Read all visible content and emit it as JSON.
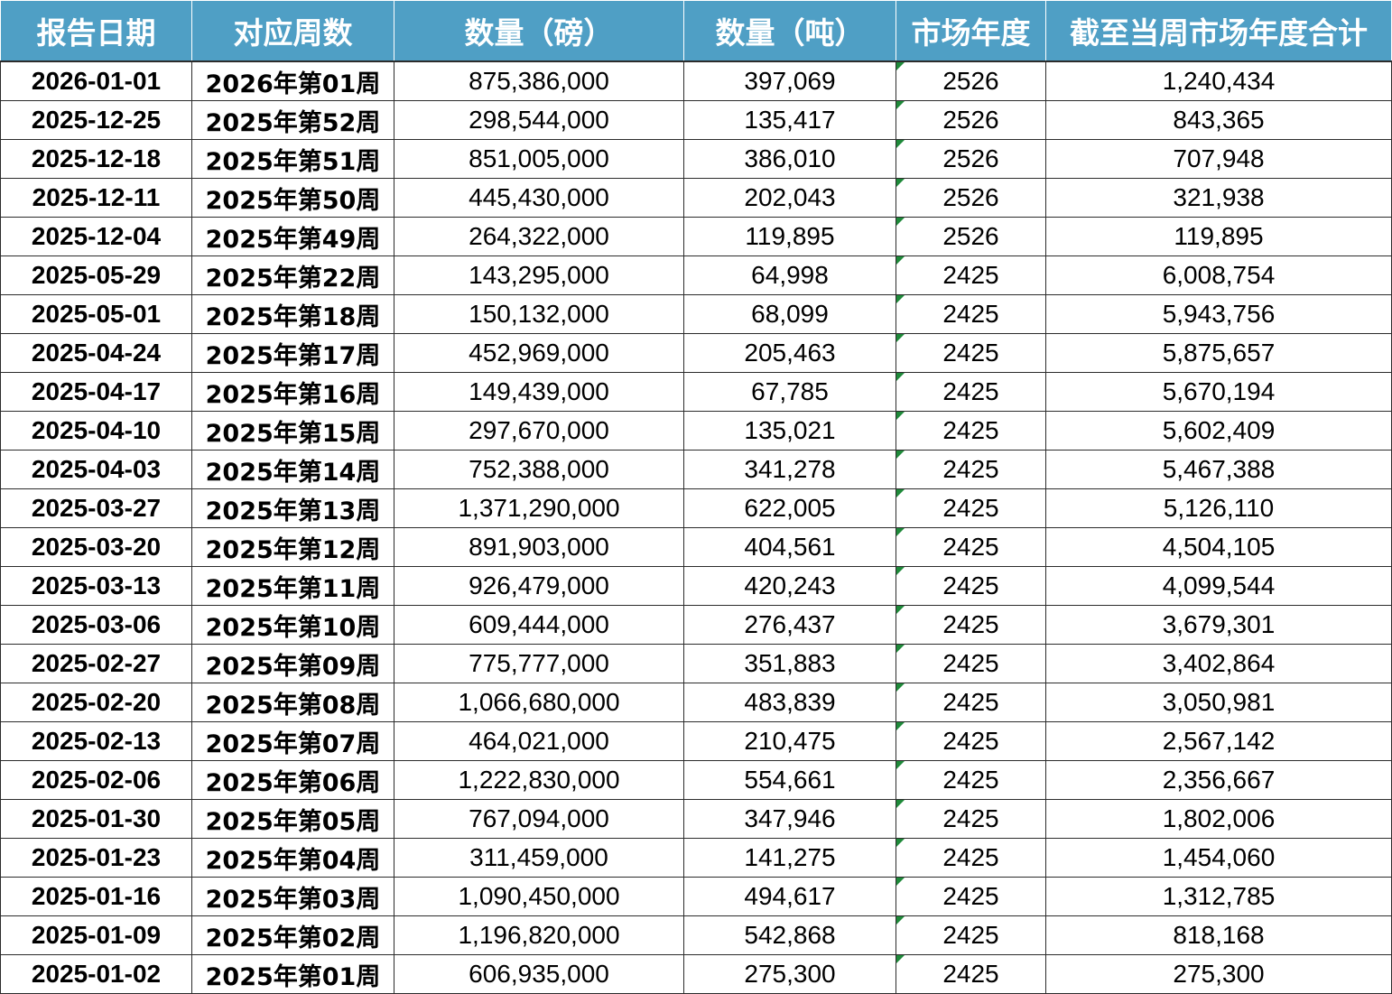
{
  "headers": [
    "报告日期",
    "对应周数",
    "数量（磅）",
    "数量（吨）",
    "市场年度",
    "截至当周市场年度合计"
  ],
  "rows": [
    [
      "2026-01-01",
      "2026年第01周",
      "875,386,000",
      "397,069",
      "2526",
      "1,240,434"
    ],
    [
      "2025-12-25",
      "2025年第52周",
      "298,544,000",
      "135,417",
      "2526",
      "843,365"
    ],
    [
      "2025-12-18",
      "2025年第51周",
      "851,005,000",
      "386,010",
      "2526",
      "707,948"
    ],
    [
      "2025-12-11",
      "2025年第50周",
      "445,430,000",
      "202,043",
      "2526",
      "321,938"
    ],
    [
      "2025-12-04",
      "2025年第49周",
      "264,322,000",
      "119,895",
      "2526",
      "119,895"
    ],
    [
      "2025-05-29",
      "2025年第22周",
      "143,295,000",
      "64,998",
      "2425",
      "6,008,754"
    ],
    [
      "2025-05-01",
      "2025年第18周",
      "150,132,000",
      "68,099",
      "2425",
      "5,943,756"
    ],
    [
      "2025-04-24",
      "2025年第17周",
      "452,969,000",
      "205,463",
      "2425",
      "5,875,657"
    ],
    [
      "2025-04-17",
      "2025年第16周",
      "149,439,000",
      "67,785",
      "2425",
      "5,670,194"
    ],
    [
      "2025-04-10",
      "2025年第15周",
      "297,670,000",
      "135,021",
      "2425",
      "5,602,409"
    ],
    [
      "2025-04-03",
      "2025年第14周",
      "752,388,000",
      "341,278",
      "2425",
      "5,467,388"
    ],
    [
      "2025-03-27",
      "2025年第13周",
      "1,371,290,000",
      "622,005",
      "2425",
      "5,126,110"
    ],
    [
      "2025-03-20",
      "2025年第12周",
      "891,903,000",
      "404,561",
      "2425",
      "4,504,105"
    ],
    [
      "2025-03-13",
      "2025年第11周",
      "926,479,000",
      "420,243",
      "2425",
      "4,099,544"
    ],
    [
      "2025-03-06",
      "2025年第10周",
      "609,444,000",
      "276,437",
      "2425",
      "3,679,301"
    ],
    [
      "2025-02-27",
      "2025年第09周",
      "775,777,000",
      "351,883",
      "2425",
      "3,402,864"
    ],
    [
      "2025-02-20",
      "2025年第08周",
      "1,066,680,000",
      "483,839",
      "2425",
      "3,050,981"
    ],
    [
      "2025-02-13",
      "2025年第07周",
      "464,021,000",
      "210,475",
      "2425",
      "2,567,142"
    ],
    [
      "2025-02-06",
      "2025年第06周",
      "1,222,830,000",
      "554,661",
      "2425",
      "2,356,667"
    ],
    [
      "2025-01-30",
      "2025年第05周",
      "767,094,000",
      "347,946",
      "2425",
      "1,802,006"
    ],
    [
      "2025-01-23",
      "2025年第04周",
      "311,459,000",
      "141,275",
      "2425",
      "1,454,060"
    ],
    [
      "2025-01-16",
      "2025年第03周",
      "1,090,450,000",
      "494,617",
      "2425",
      "1,312,785"
    ],
    [
      "2025-01-09",
      "2025年第02周",
      "1,196,820,000",
      "542,868",
      "2425",
      "818,168"
    ],
    [
      "2025-01-02",
      "2025年第01周",
      "606,935,000",
      "275,300",
      "2425",
      "275,300"
    ]
  ],
  "colors": {
    "header_bg": "#4f9fc5",
    "header_text": "#ffffff",
    "grid": "#2c2c2c",
    "cell_marker": "#1f8a3a"
  }
}
